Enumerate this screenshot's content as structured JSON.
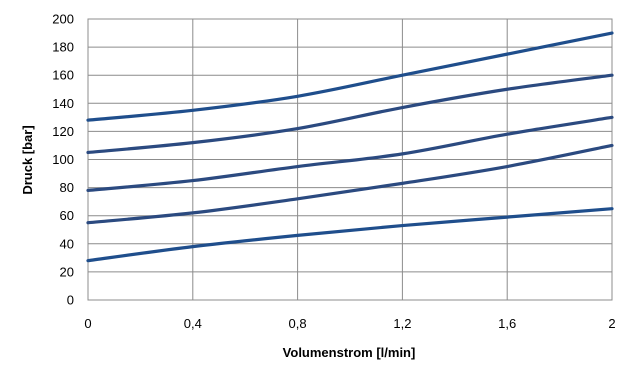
{
  "chart_data": {
    "type": "line",
    "title": "",
    "xlabel": "Volumenstrom [l/min]",
    "ylabel": "Druck [bar]",
    "xlim": [
      0,
      2
    ],
    "ylim": [
      0,
      200
    ],
    "x_ticks": [
      "0",
      "0,4",
      "0,8",
      "1,2",
      "1,6",
      "2"
    ],
    "x_tick_values": [
      0,
      0.4,
      0.8,
      1.2,
      1.6,
      2.0
    ],
    "y_ticks": [
      "0",
      "20",
      "40",
      "60",
      "80",
      "100",
      "120",
      "140",
      "160",
      "180",
      "200"
    ],
    "y_tick_values": [
      0,
      20,
      40,
      60,
      80,
      100,
      120,
      140,
      160,
      180,
      200
    ],
    "grid": true,
    "legend": "none",
    "x": [
      0,
      0.4,
      0.8,
      1.2,
      1.6,
      2.0
    ],
    "series": [
      {
        "values": [
          28,
          38,
          46,
          53,
          59,
          65
        ],
        "color": "#1f4e8c"
      },
      {
        "values": [
          55,
          62,
          72,
          83,
          95,
          110
        ],
        "color": "#2b4a80"
      },
      {
        "values": [
          78,
          85,
          95,
          104,
          118,
          130
        ],
        "color": "#2b4a80"
      },
      {
        "values": [
          105,
          112,
          122,
          137,
          150,
          160
        ],
        "color": "#2b4a80"
      },
      {
        "values": [
          128,
          135,
          145,
          160,
          175,
          190
        ],
        "color": "#1f4e8c"
      }
    ]
  }
}
